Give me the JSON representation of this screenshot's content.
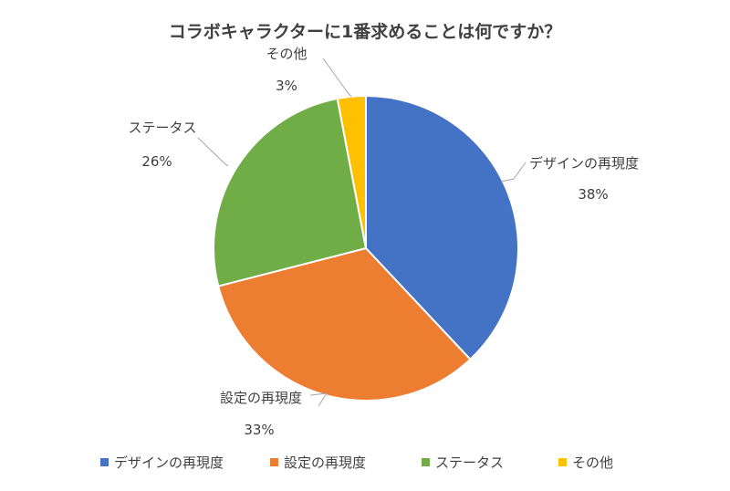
{
  "chart_data": {
    "type": "pie",
    "title": "コラボキャラクターに1番求めることは何ですか？",
    "categories": [
      "デザインの再現度",
      "設定の再現度",
      "ステータス",
      "その他"
    ],
    "values": [
      38,
      33,
      26,
      3
    ],
    "value_labels": [
      "38%",
      "33%",
      "26%",
      "3%"
    ],
    "colors": [
      "#4472C4",
      "#ED7D31",
      "#70AD47",
      "#FFC000"
    ],
    "legend_position": "bottom",
    "start_angle": "12 o'clock",
    "direction": "clockwise"
  }
}
